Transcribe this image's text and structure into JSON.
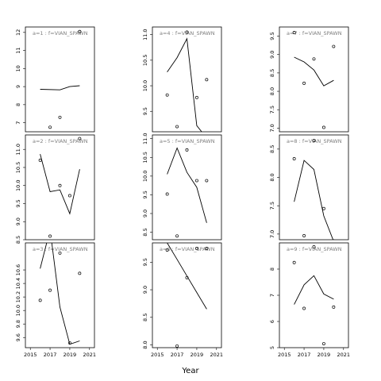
{
  "figure": {
    "xlabel": "Year",
    "colors": {
      "line": "#000000",
      "strip_text": "#7f7f7f",
      "frame": "#000000",
      "background": "#ffffff"
    }
  },
  "chart_data": [
    {
      "type": "line+scatter",
      "strip_label": "a=1 : f=VIAN_SPAWN",
      "xlim": [
        2014.5,
        2021.5
      ],
      "xticks": [],
      "ylim": [
        6.5,
        12.3
      ],
      "yticks": [
        7,
        8,
        9,
        10,
        11,
        12
      ],
      "line": {
        "x": [
          2016,
          2018,
          2019,
          2020
        ],
        "y": [
          8.85,
          8.82,
          9.0,
          9.05
        ]
      },
      "points": {
        "x": [
          2017,
          2018,
          2020
        ],
        "y": [
          6.75,
          7.3,
          12.05
        ]
      }
    },
    {
      "type": "line+scatter",
      "strip_label": "a=4 : f=VIAN_SPAWN",
      "xlim": [
        2014.5,
        2021.5
      ],
      "xticks": [],
      "ylim": [
        9.1,
        11.15
      ],
      "yticks": [
        9.5,
        10.0,
        10.5,
        11.0
      ],
      "line": {
        "x": [
          2016,
          2017,
          2018,
          2019,
          2019.5
        ],
        "y": [
          10.27,
          10.55,
          10.92,
          9.22,
          9.1
        ]
      },
      "points": {
        "x": [
          2016,
          2017,
          2019,
          2020,
          2018
        ],
        "y": [
          9.82,
          9.2,
          9.77,
          10.12,
          11.05
        ]
      }
    },
    {
      "type": "line+scatter",
      "strip_label": "a=7 : f=VIAN_SPAWN",
      "xlim": [
        2014.5,
        2021.5
      ],
      "xticks": [],
      "ylim": [
        6.9,
        9.75
      ],
      "yticks": [
        7.0,
        7.5,
        8.0,
        8.5,
        9.0,
        9.5
      ],
      "line": {
        "x": [
          2016,
          2017,
          2018,
          2019,
          2020
        ],
        "y": [
          8.93,
          8.8,
          8.58,
          8.15,
          8.3
        ]
      },
      "points": {
        "x": [
          2016,
          2017,
          2018,
          2019,
          2020
        ],
        "y": [
          9.6,
          8.22,
          8.88,
          7.02,
          9.22
        ]
      }
    },
    {
      "type": "line+scatter",
      "strip_label": "a=2 : f=VIAN_SPAWN",
      "xlim": [
        2014.5,
        2021.5
      ],
      "xticks": [],
      "ylim": [
        8.5,
        11.4
      ],
      "yticks": [
        8.5,
        9.0,
        9.5,
        10.0,
        10.5,
        11.0
      ],
      "line": {
        "x": [
          2016,
          2017,
          2018,
          2019,
          2020
        ],
        "y": [
          10.87,
          9.83,
          9.88,
          9.22,
          10.45
        ]
      },
      "points": {
        "x": [
          2016,
          2017,
          2018,
          2019,
          2020
        ],
        "y": [
          10.7,
          8.6,
          10.0,
          9.72,
          11.3
        ]
      }
    },
    {
      "type": "line+scatter",
      "strip_label": "a=5 : f=VIAN_SPAWN",
      "xlim": [
        2014.5,
        2021.5
      ],
      "xticks": [],
      "ylim": [
        8.3,
        11.1
      ],
      "yticks": [
        8.5,
        9.0,
        9.5,
        10.0,
        10.5,
        11.0
      ],
      "line": {
        "x": [
          2016,
          2017,
          2018,
          2019,
          2020
        ],
        "y": [
          10.05,
          10.75,
          10.1,
          9.7,
          8.75
        ]
      },
      "points": {
        "x": [
          2016,
          2017,
          2018,
          2019,
          2020
        ],
        "y": [
          9.52,
          8.4,
          10.7,
          9.88,
          9.88
        ]
      }
    },
    {
      "type": "line+scatter",
      "strip_label": "a=8 : f=VIAN_SPAWN",
      "xlim": [
        2014.5,
        2021.5
      ],
      "xticks": [],
      "ylim": [
        6.9,
        8.75
      ],
      "yticks": [
        7.0,
        7.5,
        8.0,
        8.5
      ],
      "line": {
        "x": [
          2016,
          2017,
          2018,
          2019,
          2020
        ],
        "y": [
          7.57,
          8.3,
          8.14,
          7.32,
          6.87
        ]
      },
      "points": {
        "x": [
          2016,
          2017,
          2018,
          2019,
          2020
        ],
        "y": [
          8.33,
          6.97,
          8.65,
          7.45,
          6.88
        ]
      }
    },
    {
      "type": "line+scatter",
      "strip_label": "a=3 : f=VIAN_SPAWN",
      "xlim": [
        2014.5,
        2021.5
      ],
      "xticks": [
        2015,
        2017,
        2019,
        2021
      ],
      "ylim": [
        9.45,
        11.0
      ],
      "yticks": [
        9.6,
        9.8,
        10.0,
        10.2,
        10.4,
        10.6
      ],
      "line": {
        "x": [
          2016,
          2017,
          2018,
          2019,
          2020
        ],
        "y": [
          10.62,
          11.2,
          10.05,
          9.5,
          9.55
        ]
      },
      "points": {
        "x": [
          2016,
          2017,
          2018,
          2019,
          2020
        ],
        "y": [
          10.15,
          10.3,
          10.85,
          9.52,
          10.55
        ]
      }
    },
    {
      "type": "line+scatter",
      "strip_label": "a=6 : f=VIAN_SPAWN",
      "xlim": [
        2014.5,
        2021.5
      ],
      "xticks": [
        2015,
        2017,
        2019,
        2021
      ],
      "ylim": [
        7.95,
        9.85
      ],
      "yticks": [
        8.0,
        8.5,
        9.0,
        9.5
      ],
      "line": {
        "x": [
          2016,
          2017,
          2018,
          2019,
          2020
        ],
        "y": [
          9.85,
          9.55,
          9.25,
          8.95,
          8.65
        ]
      },
      "points": {
        "x": [
          2016,
          2017,
          2018,
          2019,
          2020
        ],
        "y": [
          9.72,
          7.98,
          9.22,
          9.75,
          9.75
        ]
      }
    },
    {
      "type": "line+scatter",
      "strip_label": "a=9 : f=VIAN_SPAWN",
      "xlim": [
        2014.5,
        2021.5
      ],
      "xticks": [
        2015,
        2017,
        2019,
        2021
      ],
      "ylim": [
        5.0,
        9.0
      ],
      "yticks": [
        5,
        6,
        7,
        8
      ],
      "line": {
        "x": [
          2016,
          2017,
          2018,
          2019,
          2020
        ],
        "y": [
          6.65,
          7.4,
          7.75,
          7.05,
          6.85
        ]
      },
      "points": {
        "x": [
          2016,
          2017,
          2018,
          2019,
          2020
        ],
        "y": [
          8.25,
          6.5,
          8.85,
          5.15,
          6.55
        ]
      }
    }
  ]
}
